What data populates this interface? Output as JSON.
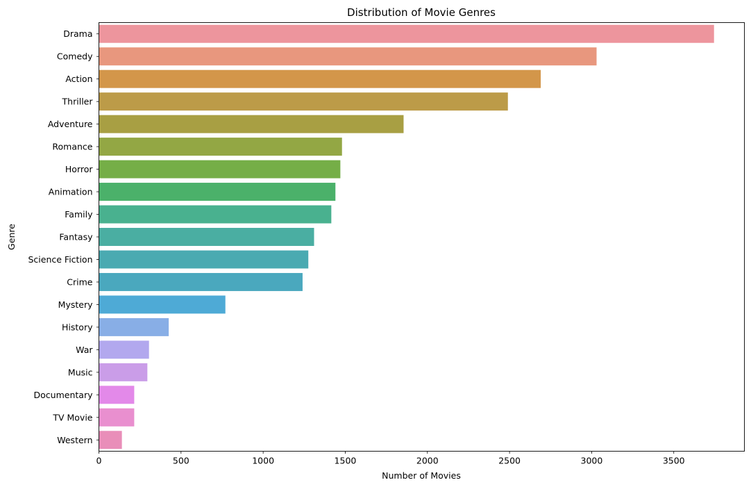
{
  "chart_data": {
    "type": "bar",
    "orientation": "horizontal",
    "title": "Distribution of Movie Genres",
    "xlabel": "Number of Movies",
    "ylabel": "Genre",
    "xlim": [
      0,
      3930
    ],
    "xticks": [
      0,
      500,
      1000,
      1500,
      2000,
      2500,
      3000,
      3500
    ],
    "grid": false,
    "categories": [
      "Drama",
      "Comedy",
      "Action",
      "Thriller",
      "Adventure",
      "Romance",
      "Horror",
      "Animation",
      "Family",
      "Fantasy",
      "Science Fiction",
      "Crime",
      "Mystery",
      "History",
      "War",
      "Music",
      "Documentary",
      "TV Movie",
      "Western"
    ],
    "values": [
      3745,
      3030,
      2690,
      2490,
      1855,
      1480,
      1470,
      1440,
      1415,
      1310,
      1275,
      1240,
      770,
      425,
      305,
      295,
      215,
      215,
      140
    ],
    "colors": [
      "#ed959d",
      "#e8977e",
      "#d3964a",
      "#bc9b48",
      "#a89f43",
      "#93a744",
      "#75ae47",
      "#4bb16a",
      "#49b18f",
      "#4aaea2",
      "#4aaab1",
      "#4aa8be",
      "#4eaad6",
      "#88aee6",
      "#b2a8ee",
      "#ca9de8",
      "#e389e9",
      "#e98fcf",
      "#e98eb9"
    ]
  }
}
